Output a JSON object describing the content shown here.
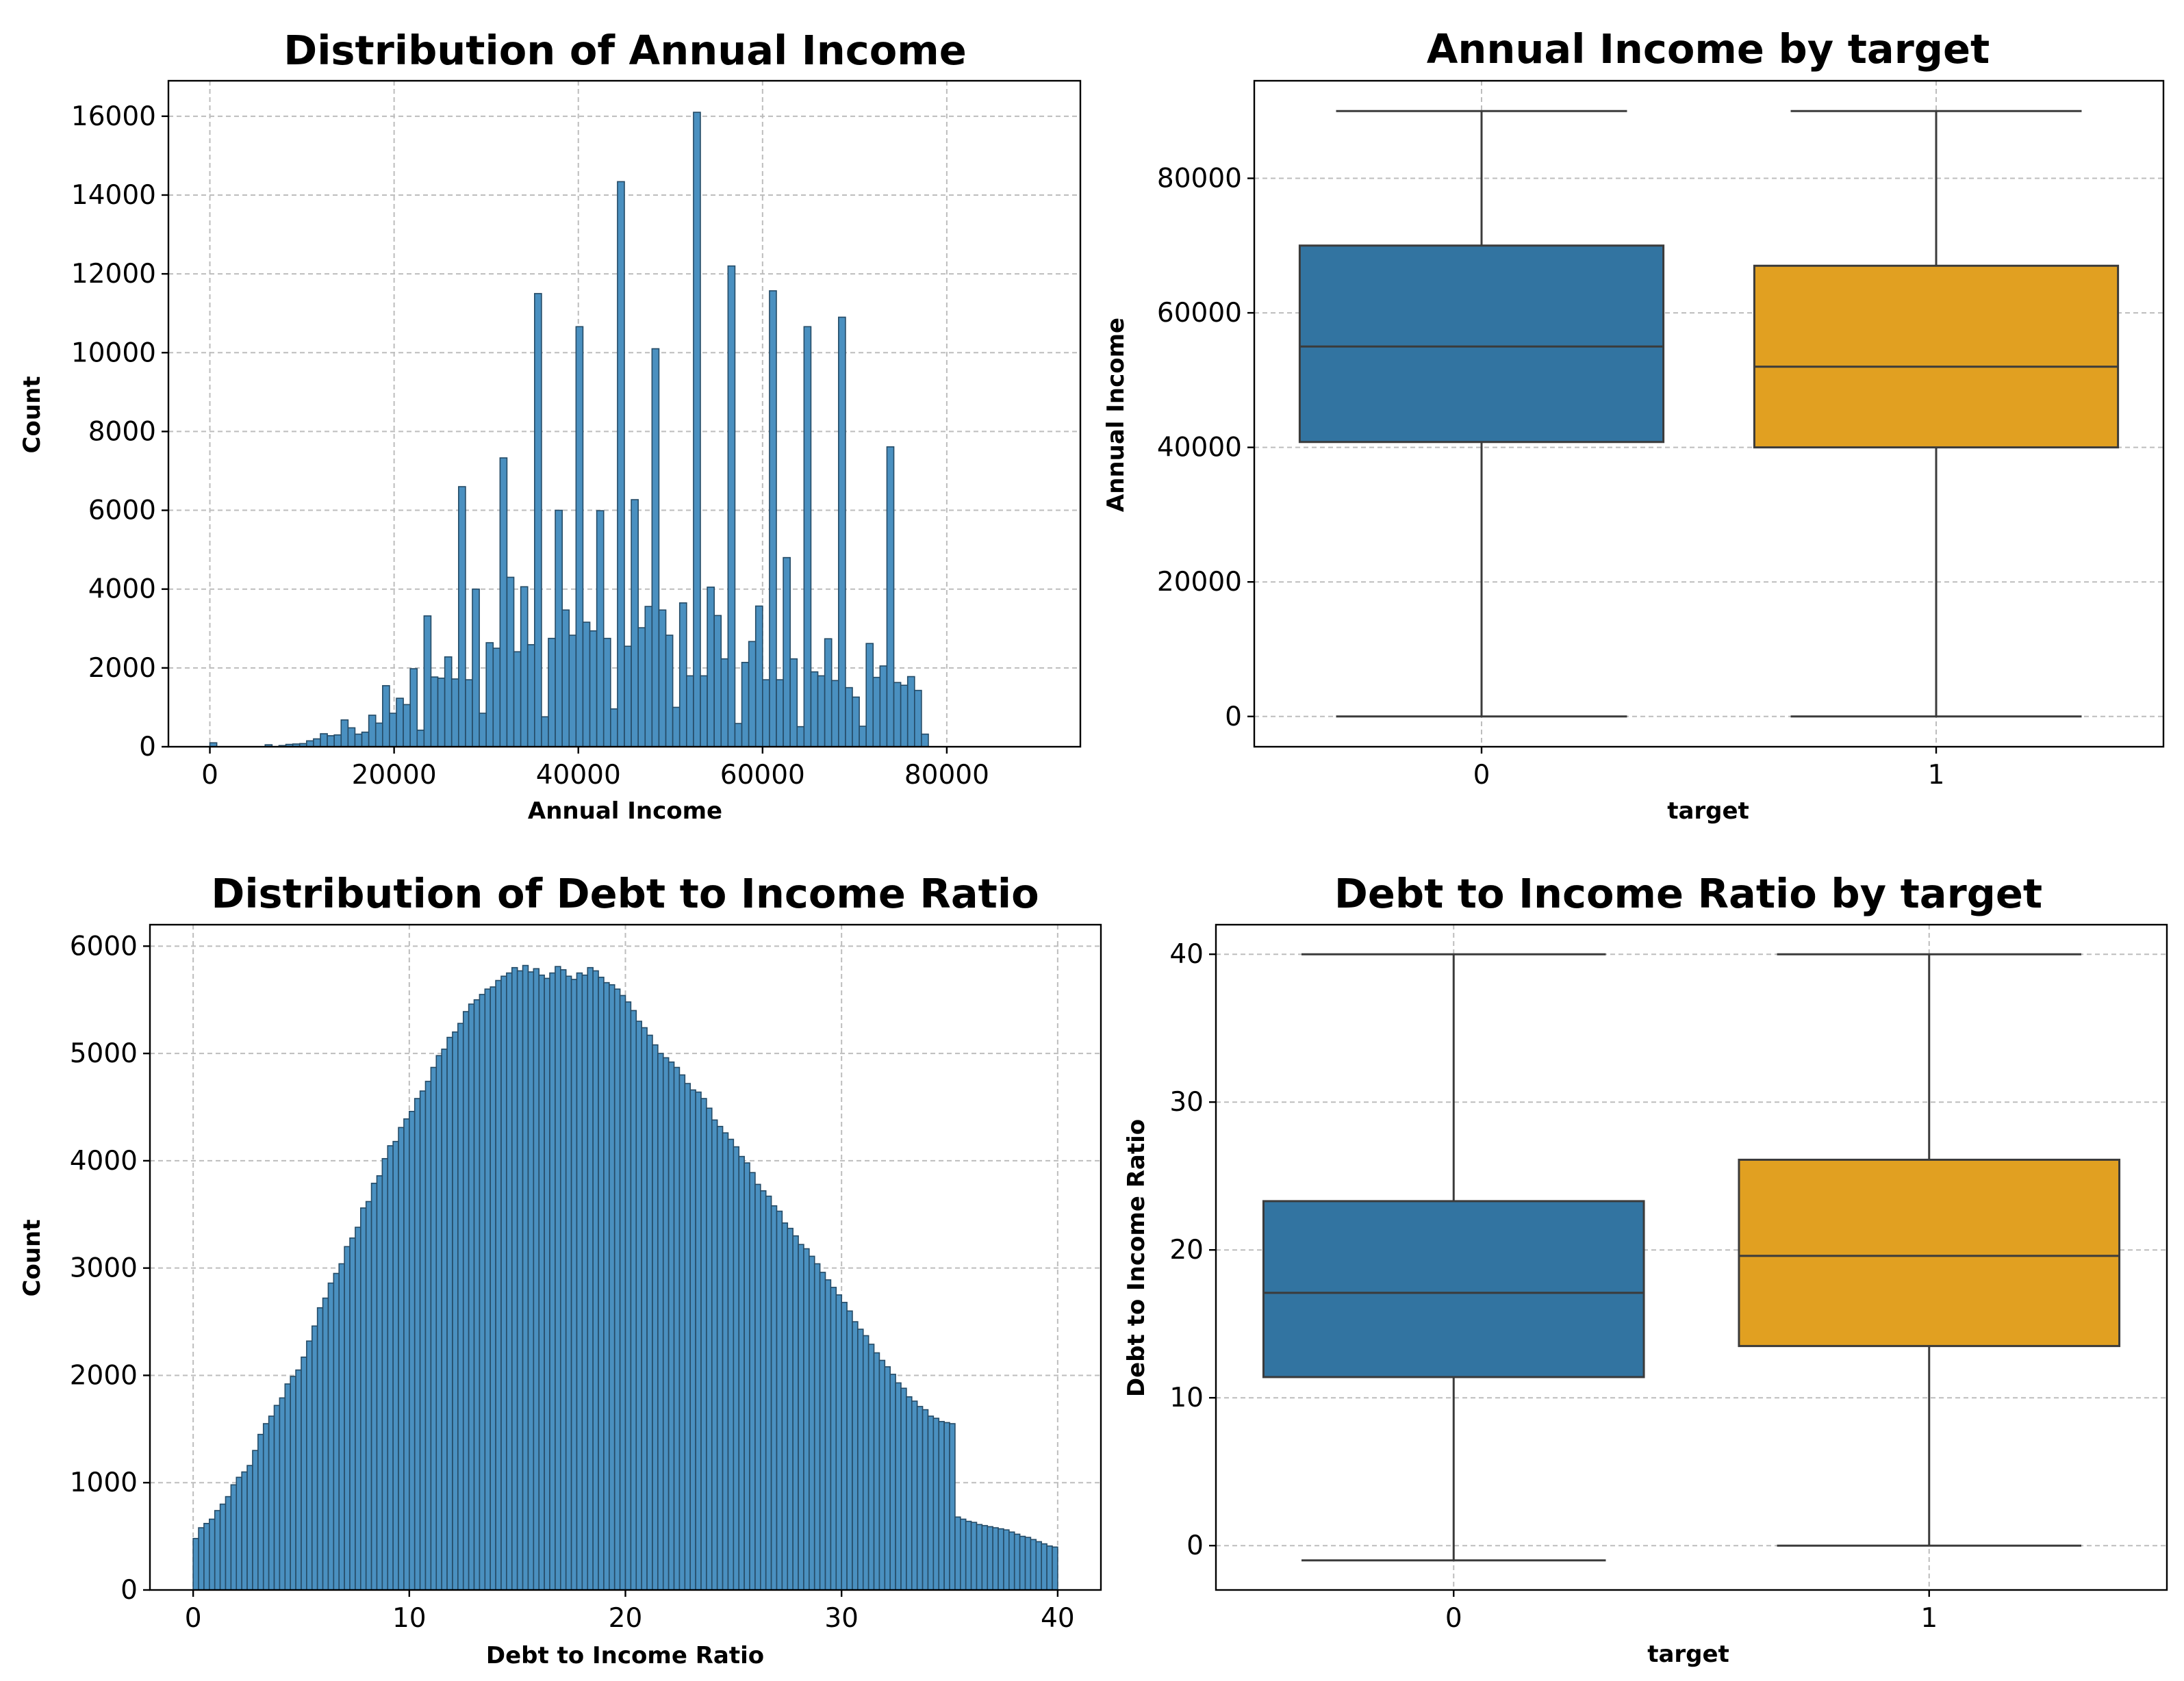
{
  "chart_data": [
    {
      "id": "income-hist",
      "type": "bar",
      "title": "Distribution of Annual Income",
      "xlabel": "Annual Income",
      "ylabel": "Count",
      "bin_start": 0,
      "bin_width": 750,
      "xlim": [
        -4500,
        94500
      ],
      "ylim": [
        0,
        16900
      ],
      "xticks": [
        0,
        20000,
        40000,
        60000,
        80000
      ],
      "yticks": [
        0,
        2000,
        4000,
        6000,
        8000,
        10000,
        12000,
        14000,
        16000
      ],
      "grid": true,
      "values": [
        100,
        0,
        0,
        0,
        0,
        0,
        0,
        0,
        50,
        0,
        30,
        60,
        70,
        80,
        150,
        200,
        330,
        280,
        300,
        680,
        480,
        320,
        370,
        800,
        600,
        1550,
        850,
        1230,
        1070,
        1980,
        420,
        3320,
        1770,
        1740,
        2280,
        1720,
        6600,
        1700,
        4000,
        850,
        2640,
        2500,
        7330,
        4300,
        2410,
        4060,
        2590,
        11500,
        760,
        2750,
        6000,
        3470,
        2830,
        10660,
        3160,
        2940,
        5990,
        2750,
        960,
        14340,
        2550,
        6270,
        3020,
        3560,
        10100,
        3470,
        2830,
        1000,
        3650,
        1800,
        16100,
        1800,
        4050,
        3330,
        2230,
        12200,
        590,
        2140,
        2670,
        3570,
        1700,
        11570,
        1700,
        4800,
        2230,
        510,
        10660,
        1900,
        1800,
        2740,
        1680,
        10900,
        1500,
        1260,
        520,
        2620,
        1760,
        2050,
        7610,
        1630,
        1560,
        1780,
        1430,
        320
      ]
    },
    {
      "id": "income-box",
      "type": "box",
      "title": "Annual Income by target",
      "xlabel": "target",
      "ylabel": "Annual Income",
      "categories": [
        "0",
        "1"
      ],
      "colors": [
        "#3274a1",
        "#e1a021"
      ],
      "ylim": [
        -4500,
        94500
      ],
      "yticks": [
        0,
        20000,
        40000,
        60000,
        80000
      ],
      "grid": true,
      "boxes": [
        {
          "whisker_low": 0,
          "q1": 40800,
          "median": 55000,
          "q3": 70000,
          "whisker_high": 90000
        },
        {
          "whisker_low": 0,
          "q1": 40000,
          "median": 52000,
          "q3": 67000,
          "whisker_high": 90000
        }
      ]
    },
    {
      "id": "dti-hist",
      "type": "bar",
      "title": "Distribution of Debt to Income Ratio",
      "xlabel": "Debt to Income Ratio",
      "ylabel": "Count",
      "bin_start": 0,
      "bin_width": 0.25,
      "xlim": [
        -2.0,
        42.0
      ],
      "ylim": [
        0,
        6200
      ],
      "xticks": [
        0,
        10,
        20,
        30,
        40
      ],
      "yticks": [
        0,
        1000,
        2000,
        3000,
        4000,
        5000,
        6000
      ],
      "grid": true,
      "values": [
        480,
        580,
        620,
        660,
        740,
        800,
        870,
        980,
        1050,
        1100,
        1160,
        1300,
        1450,
        1550,
        1620,
        1720,
        1790,
        1920,
        1990,
        2050,
        2170,
        2320,
        2460,
        2630,
        2720,
        2860,
        2950,
        3040,
        3200,
        3280,
        3380,
        3560,
        3620,
        3790,
        3860,
        4020,
        4140,
        4180,
        4310,
        4390,
        4460,
        4580,
        4650,
        4740,
        4870,
        4980,
        5040,
        5150,
        5200,
        5280,
        5390,
        5460,
        5500,
        5550,
        5600,
        5620,
        5680,
        5720,
        5750,
        5800,
        5770,
        5820,
        5760,
        5790,
        5730,
        5700,
        5750,
        5810,
        5780,
        5720,
        5690,
        5750,
        5730,
        5800,
        5770,
        5710,
        5660,
        5640,
        5600,
        5540,
        5480,
        5400,
        5300,
        5240,
        5170,
        5080,
        5000,
        4960,
        4920,
        4870,
        4800,
        4720,
        4660,
        4640,
        4580,
        4490,
        4380,
        4320,
        4260,
        4200,
        4130,
        4040,
        3980,
        3890,
        3780,
        3720,
        3670,
        3580,
        3530,
        3420,
        3370,
        3300,
        3220,
        3180,
        3110,
        3040,
        2960,
        2890,
        2820,
        2750,
        2680,
        2600,
        2500,
        2430,
        2370,
        2290,
        2210,
        2140,
        2080,
        2010,
        1930,
        1880,
        1800,
        1760,
        1710,
        1680,
        1620,
        1600,
        1570,
        1560,
        1550,
        680,
        660,
        640,
        630,
        610,
        600,
        590,
        580,
        570,
        560,
        540,
        520,
        500,
        490,
        470,
        450,
        430,
        410,
        400
      ]
    },
    {
      "id": "dti-box",
      "type": "box",
      "title": "Debt to Income Ratio by target",
      "xlabel": "target",
      "ylabel": "Debt to Income Ratio",
      "categories": [
        "0",
        "1"
      ],
      "colors": [
        "#3274a1",
        "#e1a021"
      ],
      "ylim": [
        -3,
        42
      ],
      "yticks": [
        0,
        10,
        20,
        30,
        40
      ],
      "grid": true,
      "boxes": [
        {
          "whisker_low": -1,
          "q1": 11.4,
          "median": 17.1,
          "q3": 23.3,
          "whisker_high": 40
        },
        {
          "whisker_low": 0,
          "q1": 13.5,
          "median": 19.6,
          "q3": 26.1,
          "whisker_high": 40
        }
      ]
    }
  ]
}
